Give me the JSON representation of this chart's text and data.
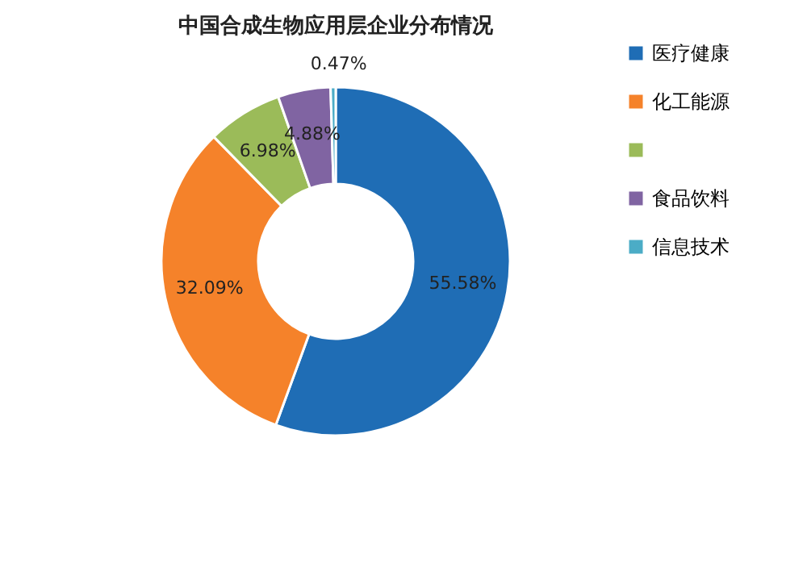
{
  "chart_data": {
    "type": "donut",
    "title": "中国合成生物应用层企业分布情况",
    "categories": [
      "医疗健康",
      "化工能源",
      null,
      "食品饮料",
      "信息技术"
    ],
    "values": [
      55.58,
      32.09,
      6.98,
      4.88,
      0.47
    ],
    "value_labels": [
      "55.58%",
      "32.09%",
      "6.98%",
      "4.88%",
      "0.47%"
    ],
    "colors": [
      "#1f6db5",
      "#f5822a",
      "#9bbb59",
      "#8064a2",
      "#4bacc6"
    ],
    "legend": "right"
  }
}
